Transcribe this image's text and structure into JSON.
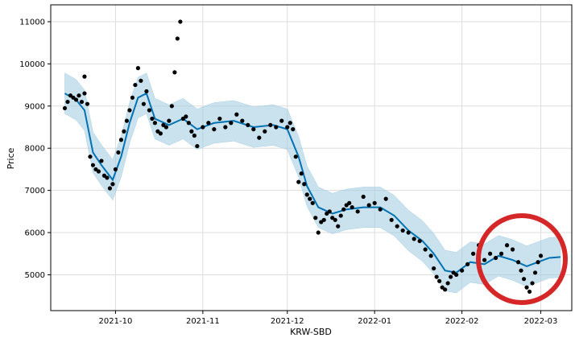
{
  "chart_data": {
    "type": "scatter",
    "title": "",
    "xlabel": "KRW-SBD",
    "ylabel": "Price",
    "x_ticks": [
      "2021-10",
      "2021-11",
      "2021-12",
      "2022-01",
      "2022-02",
      "2022-03"
    ],
    "y_ticks": [
      5000,
      6000,
      7000,
      8000,
      9000,
      10000,
      11000
    ],
    "xlim": [
      "2021-09-08",
      "2022-03-12"
    ],
    "ylim": [
      4150,
      11400
    ],
    "grid": true,
    "colors": {
      "points": "#000000",
      "forecast_line": "#0072B2",
      "interval_fill": "#a6cee3",
      "annotation_circle": "#d62728"
    },
    "series": [
      {
        "role": "observed",
        "points": [
          [
            "2021-09-13",
            8950
          ],
          [
            "2021-09-14",
            9100
          ],
          [
            "2021-09-15",
            9250
          ],
          [
            "2021-09-16",
            9200
          ],
          [
            "2021-09-17",
            9150
          ],
          [
            "2021-09-18",
            9250
          ],
          [
            "2021-09-19",
            9100
          ],
          [
            "2021-09-20",
            9300
          ],
          [
            "2021-09-20",
            9700
          ],
          [
            "2021-09-21",
            9050
          ],
          [
            "2021-09-22",
            7800
          ],
          [
            "2021-09-23",
            7600
          ],
          [
            "2021-09-24",
            7500
          ],
          [
            "2021-09-25",
            7450
          ],
          [
            "2021-09-26",
            7700
          ],
          [
            "2021-09-27",
            7350
          ],
          [
            "2021-09-28",
            7300
          ],
          [
            "2021-09-29",
            7050
          ],
          [
            "2021-09-30",
            7150
          ],
          [
            "2021-10-01",
            7500
          ],
          [
            "2021-10-02",
            7900
          ],
          [
            "2021-10-03",
            8200
          ],
          [
            "2021-10-04",
            8400
          ],
          [
            "2021-10-05",
            8650
          ],
          [
            "2021-10-06",
            8900
          ],
          [
            "2021-10-07",
            9200
          ],
          [
            "2021-10-08",
            9500
          ],
          [
            "2021-10-09",
            9900
          ],
          [
            "2021-10-10",
            9600
          ],
          [
            "2021-10-11",
            9050
          ],
          [
            "2021-10-12",
            9350
          ],
          [
            "2021-10-13",
            8900
          ],
          [
            "2021-10-14",
            8700
          ],
          [
            "2021-10-15",
            8600
          ],
          [
            "2021-10-16",
            8400
          ],
          [
            "2021-10-17",
            8350
          ],
          [
            "2021-10-18",
            8550
          ],
          [
            "2021-10-19",
            8500
          ],
          [
            "2021-10-20",
            8650
          ],
          [
            "2021-10-21",
            9000
          ],
          [
            "2021-10-22",
            9800
          ],
          [
            "2021-10-23",
            10600
          ],
          [
            "2021-10-24",
            11000
          ],
          [
            "2021-10-25",
            8700
          ],
          [
            "2021-10-26",
            8750
          ],
          [
            "2021-10-27",
            8600
          ],
          [
            "2021-10-28",
            8400
          ],
          [
            "2021-10-29",
            8300
          ],
          [
            "2021-10-30",
            8050
          ],
          [
            "2021-11-01",
            8500
          ],
          [
            "2021-11-03",
            8600
          ],
          [
            "2021-11-05",
            8450
          ],
          [
            "2021-11-07",
            8700
          ],
          [
            "2021-11-09",
            8500
          ],
          [
            "2021-11-11",
            8600
          ],
          [
            "2021-11-13",
            8800
          ],
          [
            "2021-11-15",
            8650
          ],
          [
            "2021-11-17",
            8550
          ],
          [
            "2021-11-19",
            8450
          ],
          [
            "2021-11-21",
            8250
          ],
          [
            "2021-11-23",
            8400
          ],
          [
            "2021-11-25",
            8550
          ],
          [
            "2021-11-27",
            8500
          ],
          [
            "2021-11-29",
            8650
          ],
          [
            "2021-12-01",
            8500
          ],
          [
            "2021-12-02",
            8600
          ],
          [
            "2021-12-03",
            8450
          ],
          [
            "2021-12-04",
            7800
          ],
          [
            "2021-12-05",
            7200
          ],
          [
            "2021-12-06",
            7400
          ],
          [
            "2021-12-07",
            7150
          ],
          [
            "2021-12-08",
            6900
          ],
          [
            "2021-12-09",
            6800
          ],
          [
            "2021-12-10",
            6700
          ],
          [
            "2021-12-11",
            6350
          ],
          [
            "2021-12-12",
            6000
          ],
          [
            "2021-12-13",
            6250
          ],
          [
            "2021-12-14",
            6300
          ],
          [
            "2021-12-15",
            6450
          ],
          [
            "2021-12-16",
            6500
          ],
          [
            "2021-12-17",
            6350
          ],
          [
            "2021-12-18",
            6300
          ],
          [
            "2021-12-19",
            6150
          ],
          [
            "2021-12-20",
            6400
          ],
          [
            "2021-12-21",
            6550
          ],
          [
            "2021-12-22",
            6650
          ],
          [
            "2021-12-23",
            6700
          ],
          [
            "2021-12-24",
            6600
          ],
          [
            "2021-12-26",
            6500
          ],
          [
            "2021-12-28",
            6850
          ],
          [
            "2021-12-30",
            6650
          ],
          [
            "2022-01-01",
            6700
          ],
          [
            "2022-01-03",
            6550
          ],
          [
            "2022-01-05",
            6800
          ],
          [
            "2022-01-07",
            6300
          ],
          [
            "2022-01-09",
            6150
          ],
          [
            "2022-01-11",
            6050
          ],
          [
            "2022-01-13",
            6000
          ],
          [
            "2022-01-15",
            5850
          ],
          [
            "2022-01-17",
            5800
          ],
          [
            "2022-01-19",
            5600
          ],
          [
            "2022-01-21",
            5450
          ],
          [
            "2022-01-22",
            5150
          ],
          [
            "2022-01-23",
            4950
          ],
          [
            "2022-01-24",
            4850
          ],
          [
            "2022-01-25",
            4700
          ],
          [
            "2022-01-26",
            4650
          ],
          [
            "2022-01-27",
            4800
          ],
          [
            "2022-01-28",
            4950
          ],
          [
            "2022-01-29",
            5050
          ],
          [
            "2022-01-30",
            5000
          ],
          [
            "2022-02-01",
            5100
          ],
          [
            "2022-02-03",
            5250
          ],
          [
            "2022-02-05",
            5500
          ],
          [
            "2022-02-07",
            5700
          ],
          [
            "2022-02-09",
            5350
          ],
          [
            "2022-02-11",
            5500
          ],
          [
            "2022-02-13",
            5400
          ],
          [
            "2022-02-15",
            5500
          ],
          [
            "2022-02-17",
            5700
          ],
          [
            "2022-02-19",
            5600
          ],
          [
            "2022-02-21",
            5300
          ],
          [
            "2022-02-22",
            5100
          ],
          [
            "2022-02-23",
            4900
          ],
          [
            "2022-02-24",
            4700
          ],
          [
            "2022-02-25",
            4600
          ],
          [
            "2022-02-26",
            4800
          ],
          [
            "2022-02-27",
            5050
          ],
          [
            "2022-02-28",
            5300
          ],
          [
            "2022-03-01",
            5450
          ]
        ]
      },
      {
        "role": "forecast",
        "points": [
          [
            "2021-09-13",
            9300
          ],
          [
            "2021-09-17",
            9150
          ],
          [
            "2021-09-20",
            8900
          ],
          [
            "2021-09-23",
            7900
          ],
          [
            "2021-09-26",
            7600
          ],
          [
            "2021-09-30",
            7250
          ],
          [
            "2021-10-03",
            7800
          ],
          [
            "2021-10-06",
            8600
          ],
          [
            "2021-10-09",
            9200
          ],
          [
            "2021-10-12",
            9300
          ],
          [
            "2021-10-15",
            8700
          ],
          [
            "2021-10-20",
            8550
          ],
          [
            "2021-10-25",
            8700
          ],
          [
            "2021-10-30",
            8450
          ],
          [
            "2021-11-05",
            8600
          ],
          [
            "2021-11-12",
            8650
          ],
          [
            "2021-11-19",
            8500
          ],
          [
            "2021-11-26",
            8550
          ],
          [
            "2021-12-01",
            8450
          ],
          [
            "2021-12-05",
            7800
          ],
          [
            "2021-12-08",
            7100
          ],
          [
            "2021-12-12",
            6600
          ],
          [
            "2021-12-17",
            6450
          ],
          [
            "2021-12-22",
            6550
          ],
          [
            "2021-12-28",
            6600
          ],
          [
            "2022-01-03",
            6600
          ],
          [
            "2022-01-08",
            6400
          ],
          [
            "2022-01-13",
            6050
          ],
          [
            "2022-01-18",
            5800
          ],
          [
            "2022-01-22",
            5500
          ],
          [
            "2022-01-26",
            5100
          ],
          [
            "2022-01-30",
            5050
          ],
          [
            "2022-02-04",
            5300
          ],
          [
            "2022-02-09",
            5250
          ],
          [
            "2022-02-14",
            5450
          ],
          [
            "2022-02-19",
            5350
          ],
          [
            "2022-02-24",
            5200
          ],
          [
            "2022-02-28",
            5300
          ],
          [
            "2022-03-04",
            5400
          ],
          [
            "2022-03-08",
            5420
          ]
        ],
        "interval_halfwidth": 480
      }
    ]
  }
}
